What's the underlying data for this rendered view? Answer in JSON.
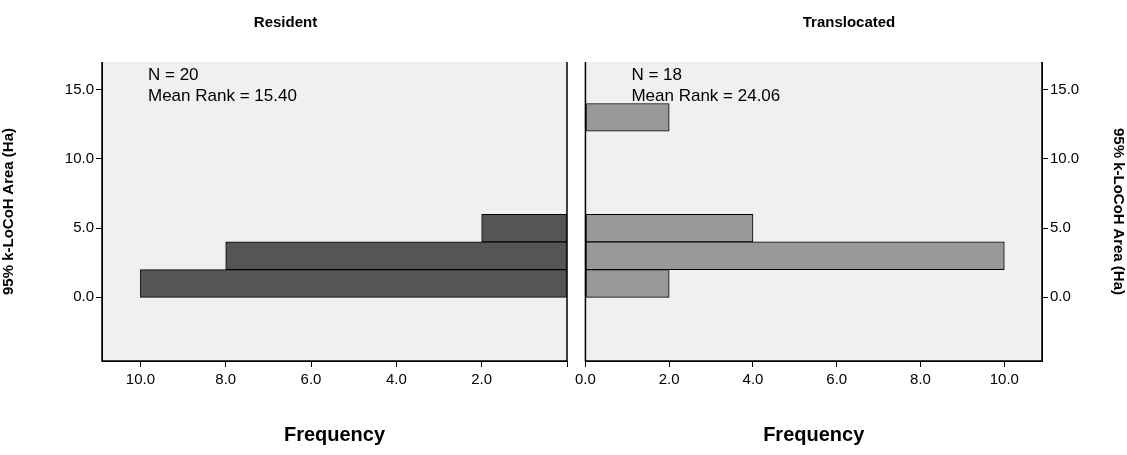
{
  "chart_data": [
    {
      "type": "histogram",
      "title": "Resident",
      "xlabel": "Frequency",
      "ylabel": "95% k-LoCoH Area (Ha)",
      "orientation": "horizontal",
      "color": "#555555",
      "annotations": [
        "N = 20",
        "Mean Rank = 15.40"
      ],
      "bins": [
        0,
        2,
        4,
        6,
        8,
        10,
        12,
        14
      ],
      "values": [
        10,
        8,
        2,
        0,
        0,
        0,
        0
      ],
      "xlim": [
        10.9,
        0
      ],
      "xticks": [
        {
          "value": 10,
          "label": "10.0"
        },
        {
          "value": 8,
          "label": "8.0"
        },
        {
          "value": 6,
          "label": "6.0"
        },
        {
          "value": 4,
          "label": "4.0"
        },
        {
          "value": 2,
          "label": "2.0"
        },
        {
          "value": 0,
          "label": null
        }
      ],
      "ylim": [
        -4.6,
        17
      ],
      "yticks": [
        {
          "value": 0,
          "label": "0.0"
        },
        {
          "value": 5,
          "label": "5.0"
        },
        {
          "value": 10,
          "label": "10.0"
        },
        {
          "value": 15,
          "label": "15.0"
        }
      ]
    },
    {
      "type": "histogram",
      "title": "Translocated",
      "xlabel": "Frequency",
      "ylabel": "95% k-LoCoH Area (Ha)",
      "orientation": "horizontal",
      "color": "#999999",
      "annotations": [
        "N = 18",
        "Mean Rank = 24.06"
      ],
      "bins": [
        0,
        2,
        4,
        6,
        8,
        10,
        12,
        14
      ],
      "values": [
        2,
        10,
        4,
        0,
        0,
        0,
        2
      ],
      "xlim": [
        0,
        10.9
      ],
      "xticks": [
        {
          "value": 0,
          "label": "0.0"
        },
        {
          "value": 2,
          "label": "2.0"
        },
        {
          "value": 4,
          "label": "4.0"
        },
        {
          "value": 6,
          "label": "6.0"
        },
        {
          "value": 8,
          "label": "8.0"
        },
        {
          "value": 10,
          "label": "10.0"
        }
      ],
      "ylim": [
        -4.6,
        17
      ],
      "yticks": [
        {
          "value": 0,
          "label": "0.0"
        },
        {
          "value": 5,
          "label": "5.0"
        },
        {
          "value": 10,
          "label": "10.0"
        },
        {
          "value": 15,
          "label": "15.0"
        }
      ]
    }
  ]
}
